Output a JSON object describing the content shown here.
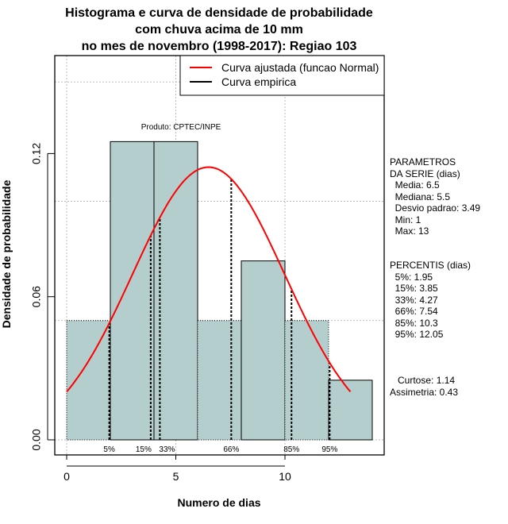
{
  "chart_data": {
    "type": "bar",
    "title": [
      "Histograma e curva de densidade de probabilidade",
      "com chuva acima de 10 mm",
      "no mes de novembro (1998-2017): Regiao 103"
    ],
    "xlabel": "Numero de dias",
    "ylabel": "Densidade de probabilidade",
    "xlim": [
      -0.5,
      14.5
    ],
    "ylim": [
      0,
      0.168
    ],
    "x_ticks": [
      0,
      5,
      10
    ],
    "y_ticks": [
      "0.00",
      "0.06",
      "0.12"
    ],
    "grid": true,
    "bins": [
      {
        "from": 0,
        "to": 2,
        "density": 0.05
      },
      {
        "from": 2,
        "to": 4,
        "density": 0.125
      },
      {
        "from": 4,
        "to": 6,
        "density": 0.125
      },
      {
        "from": 6,
        "to": 8,
        "density": 0.05
      },
      {
        "from": 8,
        "to": 10,
        "density": 0.075
      },
      {
        "from": 10,
        "to": 12,
        "density": 0.05
      },
      {
        "from": 12,
        "to": 14,
        "density": 0.025
      }
    ],
    "normal_curve": {
      "mean": 6.5,
      "sd": 3.49,
      "from": 0,
      "to": 13
    },
    "percentiles": [
      {
        "label": "5%",
        "value": 1.95
      },
      {
        "label": "15%",
        "value": 3.85
      },
      {
        "label": "33%",
        "value": 4.27
      },
      {
        "label": "66%",
        "value": 7.54
      },
      {
        "label": "85%",
        "value": 10.3
      },
      {
        "label": "95%",
        "value": 12.05
      }
    ],
    "legend": {
      "placement": "top-right",
      "entries": [
        {
          "label": "Curva ajustada (funcao Normal)",
          "color": "#ff0000"
        },
        {
          "label": "Curva empirica",
          "color": "#000000"
        }
      ]
    },
    "annotation": "Produto: CPTEC/INPE",
    "bar_color": "#b4cecd"
  },
  "panel": {
    "parametros": "PARAMETROS\nDA SERIE (dias)\n  Media: 6.5\n  Mediana: 5.5\n  Desvio padrao: 3.49\n  Min: 1\n  Max: 13",
    "percentis": "PERCENTIS (dias)\n  5%: 1.95\n  15%: 3.85\n  33%: 4.27\n  66%: 7.54\n  85%: 10.3\n  95%: 12.05",
    "shape": "   Curtose: 1.14\nAssimetria: 0.43"
  }
}
